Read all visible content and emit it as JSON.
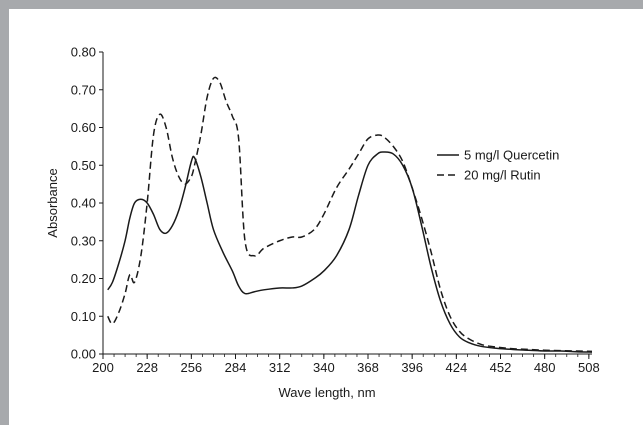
{
  "chart_data": {
    "type": "line",
    "title": "",
    "xlabel": "Wave length, nm",
    "ylabel": "Absorbance",
    "xlim": [
      200,
      510
    ],
    "ylim": [
      0,
      0.8
    ],
    "x_ticks": [
      "200",
      "228",
      "256",
      "284",
      "312",
      "340",
      "368",
      "396",
      "424",
      "452",
      "480",
      "508"
    ],
    "y_ticks": [
      "0.00",
      "0.10",
      "0.20",
      "0.30",
      "0.40",
      "0.50",
      "0.60",
      "0.70",
      "0.80"
    ],
    "grid": false,
    "legend_position": "right",
    "series": [
      {
        "name": "5 mg/l Quercetin",
        "style": "solid",
        "x": [
          203,
          206,
          210,
          214,
          217,
          220,
          224,
          228,
          232,
          236,
          240,
          244,
          248,
          252,
          256,
          258,
          262,
          266,
          270,
          276,
          282,
          286,
          290,
          296,
          302,
          312,
          320,
          326,
          334,
          340,
          348,
          356,
          362,
          368,
          374,
          378,
          384,
          390,
          396,
          402,
          408,
          414,
          420,
          426,
          432,
          440,
          450,
          460,
          470,
          480,
          490,
          500,
          510
        ],
        "y": [
          0.17,
          0.19,
          0.24,
          0.3,
          0.36,
          0.4,
          0.41,
          0.4,
          0.37,
          0.33,
          0.32,
          0.34,
          0.38,
          0.44,
          0.51,
          0.52,
          0.47,
          0.4,
          0.33,
          0.27,
          0.22,
          0.18,
          0.16,
          0.165,
          0.17,
          0.175,
          0.175,
          0.18,
          0.2,
          0.22,
          0.26,
          0.33,
          0.42,
          0.5,
          0.53,
          0.535,
          0.53,
          0.5,
          0.44,
          0.34,
          0.23,
          0.14,
          0.08,
          0.045,
          0.03,
          0.02,
          0.015,
          0.012,
          0.01,
          0.008,
          0.008,
          0.006,
          0.005
        ]
      },
      {
        "name": "20 mg/l Rutin",
        "style": "dashed",
        "x": [
          203,
          206,
          210,
          214,
          217,
          220,
          224,
          228,
          232,
          236,
          240,
          244,
          248,
          252,
          256,
          258,
          262,
          266,
          270,
          274,
          278,
          282,
          286,
          290,
          296,
          302,
          312,
          320,
          326,
          334,
          340,
          348,
          356,
          362,
          368,
          374,
          378,
          384,
          390,
          396,
          402,
          408,
          414,
          420,
          426,
          432,
          440,
          450,
          460,
          470,
          480,
          490,
          500,
          510
        ],
        "y": [
          0.1,
          0.08,
          0.11,
          0.16,
          0.21,
          0.19,
          0.26,
          0.4,
          0.58,
          0.635,
          0.6,
          0.52,
          0.47,
          0.45,
          0.47,
          0.5,
          0.58,
          0.68,
          0.73,
          0.72,
          0.67,
          0.63,
          0.57,
          0.3,
          0.26,
          0.28,
          0.3,
          0.31,
          0.31,
          0.33,
          0.37,
          0.44,
          0.49,
          0.53,
          0.57,
          0.58,
          0.575,
          0.55,
          0.51,
          0.44,
          0.36,
          0.27,
          0.17,
          0.1,
          0.06,
          0.04,
          0.025,
          0.018,
          0.014,
          0.012,
          0.01,
          0.009,
          0.008,
          0.007
        ]
      }
    ]
  }
}
